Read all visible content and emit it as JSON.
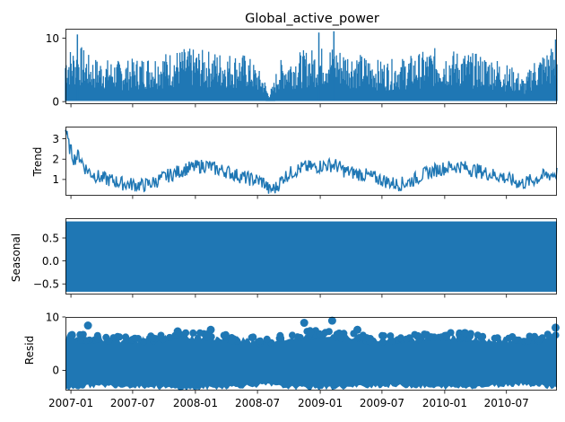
{
  "chart_data": [
    {
      "type": "line",
      "title": "Global_active_power",
      "ylabel": "",
      "ylim": [
        -0.4,
        11.5
      ],
      "yticks": [
        0,
        10
      ],
      "series": [
        {
          "color": "#1f77b4",
          "x_start": "2006-12-16",
          "x_end": "2010-11-26",
          "band_dates": [
            "2006-12-16",
            "2007-02-01",
            "2007-03-01",
            "2007-06-01",
            "2007-09-01",
            "2007-12-01",
            "2008-03-01",
            "2008-06-01",
            "2008-07-20",
            "2008-08-01",
            "2008-08-15",
            "2008-09-01",
            "2008-11-01",
            "2009-02-01",
            "2009-05-01",
            "2009-07-01",
            "2009-09-01",
            "2009-12-01",
            "2010-03-01",
            "2010-06-01",
            "2010-08-01",
            "2010-08-25",
            "2010-09-15",
            "2010-11-26"
          ],
          "band_low": [
            0.1,
            0.1,
            0.1,
            0.1,
            0.1,
            0.1,
            0.1,
            0.1,
            0.1,
            0.08,
            0.08,
            0.1,
            0.1,
            0.1,
            0.1,
            0.1,
            0.1,
            0.1,
            0.1,
            0.1,
            0.1,
            0.1,
            0.1,
            0.1
          ],
          "band_high": [
            8.5,
            8.8,
            7.0,
            6.5,
            7.5,
            8.5,
            8.0,
            7.5,
            4.0,
            1.5,
            2.5,
            6.5,
            8.0,
            9.0,
            7.5,
            6.5,
            7.0,
            8.5,
            8.0,
            7.0,
            5.0,
            3.5,
            6.5,
            9.5
          ],
          "peaks": [
            {
              "x": "2007-01-20",
              "y": 10.6
            },
            {
              "x": "2008-12-28",
              "y": 10.9
            },
            {
              "x": "2009-02-10",
              "y": 11.1
            },
            {
              "x": "2010-11-22",
              "y": 9.8
            }
          ]
        }
      ]
    },
    {
      "type": "line",
      "title": "",
      "ylabel": "Trend",
      "ylim": [
        0.2,
        3.6
      ],
      "yticks": [
        1,
        2,
        3
      ],
      "series": [
        {
          "color": "#1f77b4",
          "dates": [
            "2006-12-16",
            "2006-12-25",
            "2007-01-10",
            "2007-01-25",
            "2007-02-10",
            "2007-03-01",
            "2007-04-01",
            "2007-05-01",
            "2007-06-01",
            "2007-07-01",
            "2007-08-01",
            "2007-09-01",
            "2007-10-01",
            "2007-11-01",
            "2007-12-01",
            "2008-01-01",
            "2008-02-01",
            "2008-03-01",
            "2008-04-01",
            "2008-05-01",
            "2008-06-01",
            "2008-07-01",
            "2008-07-20",
            "2008-08-05",
            "2008-08-25",
            "2008-09-15",
            "2008-10-15",
            "2008-11-15",
            "2008-12-15",
            "2009-01-15",
            "2009-02-15",
            "2009-03-15",
            "2009-04-15",
            "2009-05-15",
            "2009-06-15",
            "2009-07-15",
            "2009-08-15",
            "2009-09-15",
            "2009-10-15",
            "2009-11-15",
            "2009-12-15",
            "2010-01-15",
            "2010-02-15",
            "2010-03-15",
            "2010-04-15",
            "2010-05-15",
            "2010-06-15",
            "2010-07-15",
            "2010-08-15",
            "2010-09-15",
            "2010-10-15",
            "2010-11-26"
          ],
          "values": [
            3.4,
            2.6,
            1.9,
            2.1,
            1.5,
            1.2,
            0.95,
            0.85,
            0.7,
            0.65,
            0.6,
            0.75,
            1.0,
            1.2,
            1.4,
            1.5,
            1.6,
            1.4,
            1.3,
            1.1,
            0.95,
            0.85,
            0.75,
            0.35,
            0.5,
            1.0,
            1.3,
            1.5,
            1.5,
            1.6,
            1.6,
            1.3,
            1.2,
            1.1,
            0.95,
            0.8,
            0.65,
            0.75,
            1.0,
            1.25,
            1.4,
            1.5,
            1.55,
            1.4,
            1.3,
            1.15,
            1.05,
            0.85,
            0.7,
            0.85,
            1.05,
            1.2
          ],
          "spread": 0.35
        }
      ]
    },
    {
      "type": "area",
      "title": "",
      "ylabel": "Seasonal",
      "ylim": [
        -0.73,
        0.93
      ],
      "yticks": [
        -0.5,
        0.0,
        0.5
      ],
      "ytick_labels": [
        "−0.5",
        "0.0",
        "0.5"
      ],
      "series": [
        {
          "color": "#1f77b4",
          "low": -0.67,
          "high": 0.86
        }
      ]
    },
    {
      "type": "scatter",
      "title": "",
      "ylabel": "Resid",
      "ylim": [
        -3.8,
        10.0
      ],
      "yticks": [
        0,
        10
      ],
      "series": [
        {
          "color": "#1f77b4",
          "band_dates": [
            "2006-12-16",
            "2007-03-01",
            "2007-06-01",
            "2007-09-01",
            "2007-12-01",
            "2008-03-01",
            "2008-06-01",
            "2008-08-01",
            "2008-09-15",
            "2008-12-01",
            "2009-03-01",
            "2009-06-01",
            "2009-09-01",
            "2009-12-01",
            "2010-03-01",
            "2010-06-01",
            "2010-08-15",
            "2010-11-26"
          ],
          "band_low": [
            -3.5,
            -3.0,
            -3.0,
            -3.2,
            -3.6,
            -3.3,
            -3.0,
            -2.8,
            -3.2,
            -3.4,
            -3.3,
            -3.0,
            -3.0,
            -3.3,
            -3.2,
            -3.0,
            -2.6,
            -3.3
          ],
          "band_high": [
            6.2,
            6.0,
            5.6,
            6.0,
            6.5,
            6.2,
            5.8,
            5.2,
            6.0,
            6.8,
            6.5,
            5.8,
            5.8,
            6.5,
            6.3,
            5.8,
            5.5,
            6.5
          ],
          "outliers": [
            {
              "x": "2007-02-20",
              "y": 8.4
            },
            {
              "x": "2007-11-10",
              "y": 7.3
            },
            {
              "x": "2008-02-15",
              "y": 7.6
            },
            {
              "x": "2008-11-15",
              "y": 8.9
            },
            {
              "x": "2009-02-05",
              "y": 9.3
            },
            {
              "x": "2009-04-20",
              "y": 7.6
            },
            {
              "x": "2010-03-01",
              "y": 7.0
            },
            {
              "x": "2010-11-22",
              "y": 8.0
            }
          ]
        }
      ]
    }
  ],
  "x_axis": {
    "ticks": [
      "2007-01",
      "2007-07",
      "2008-01",
      "2008-07",
      "2009-01",
      "2009-07",
      "2010-01",
      "2010-07"
    ],
    "range": [
      "2006-12-16",
      "2010-11-26"
    ]
  }
}
